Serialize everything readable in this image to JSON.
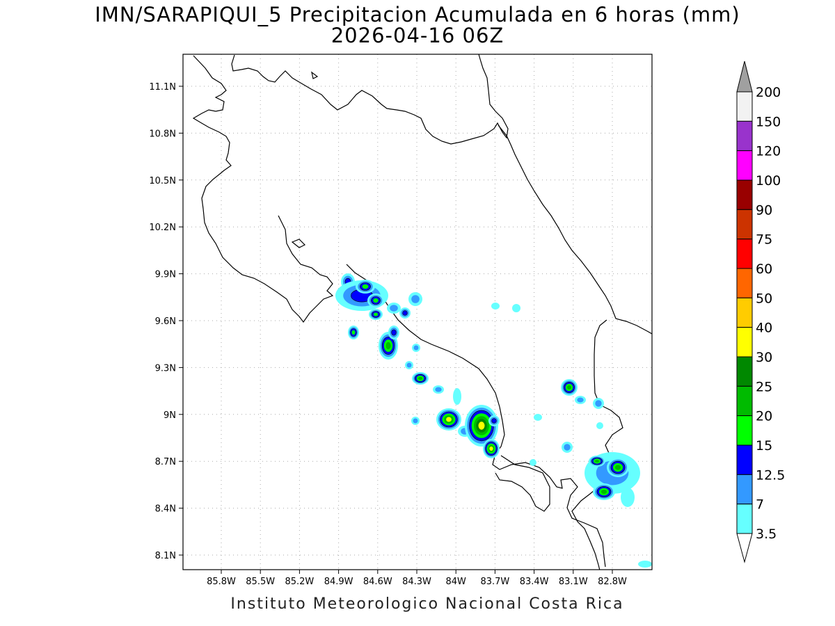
{
  "title_line1": "IMN/SARAPIQUI_5 Precipitacion Acumulada en 6 horas (mm)",
  "title_line2": "2026-04-16 06Z",
  "footer": "Instituto Meteorologico Nacional Costa Rica",
  "lon_ticks": [
    {
      "label": "85.8W",
      "lon": -85.8
    },
    {
      "label": "85.5W",
      "lon": -85.5
    },
    {
      "label": "85.2W",
      "lon": -85.2
    },
    {
      "label": "84.9W",
      "lon": -84.9
    },
    {
      "label": "84.6W",
      "lon": -84.6
    },
    {
      "label": "84.3W",
      "lon": -84.3
    },
    {
      "label": "84W",
      "lon": -84.0
    },
    {
      "label": "83.7W",
      "lon": -83.7
    },
    {
      "label": "83.4W",
      "lon": -83.4
    },
    {
      "label": "83.1W",
      "lon": -83.1
    },
    {
      "label": "82.8W",
      "lon": -82.8
    }
  ],
  "lat_ticks": [
    {
      "label": "11.1N",
      "lat": 11.1
    },
    {
      "label": "10.8N",
      "lat": 10.8
    },
    {
      "label": "10.5N",
      "lat": 10.5
    },
    {
      "label": "10.2N",
      "lat": 10.2
    },
    {
      "label": "9.9N",
      "lat": 9.9
    },
    {
      "label": "9.6N",
      "lat": 9.6
    },
    {
      "label": "9.3N",
      "lat": 9.3
    },
    {
      "label": "9N",
      "lat": 9.0
    },
    {
      "label": "8.7N",
      "lat": 8.7
    },
    {
      "label": "8.4N",
      "lat": 8.4
    },
    {
      "label": "8.1N",
      "lat": 8.1
    }
  ],
  "colorbar": {
    "labels": [
      "200",
      "150",
      "120",
      "100",
      "90",
      "75",
      "60",
      "50",
      "40",
      "30",
      "25",
      "20",
      "15",
      "12.5",
      "7",
      "3.5"
    ],
    "colors_top_to_bottom": [
      "#f2f2f2",
      "#9933cc",
      "#ff00ff",
      "#990000",
      "#cc3300",
      "#ff0000",
      "#ff6600",
      "#ffcc00",
      "#ffff00",
      "#008800",
      "#00bb00",
      "#00ff00",
      "#0000ff",
      "#3399ff",
      "#66ffff"
    ],
    "over_color": "#a0a0a0",
    "under_color": "#ffffff"
  },
  "level_colors": {
    "c3": "#66ffff",
    "c7": "#3399ff",
    "c12": "#0000ff",
    "c15": "#00ff00",
    "c20": "#00bb00",
    "c25": "#008800",
    "c30": "#ffff00",
    "c40": "#ffcc00"
  }
}
